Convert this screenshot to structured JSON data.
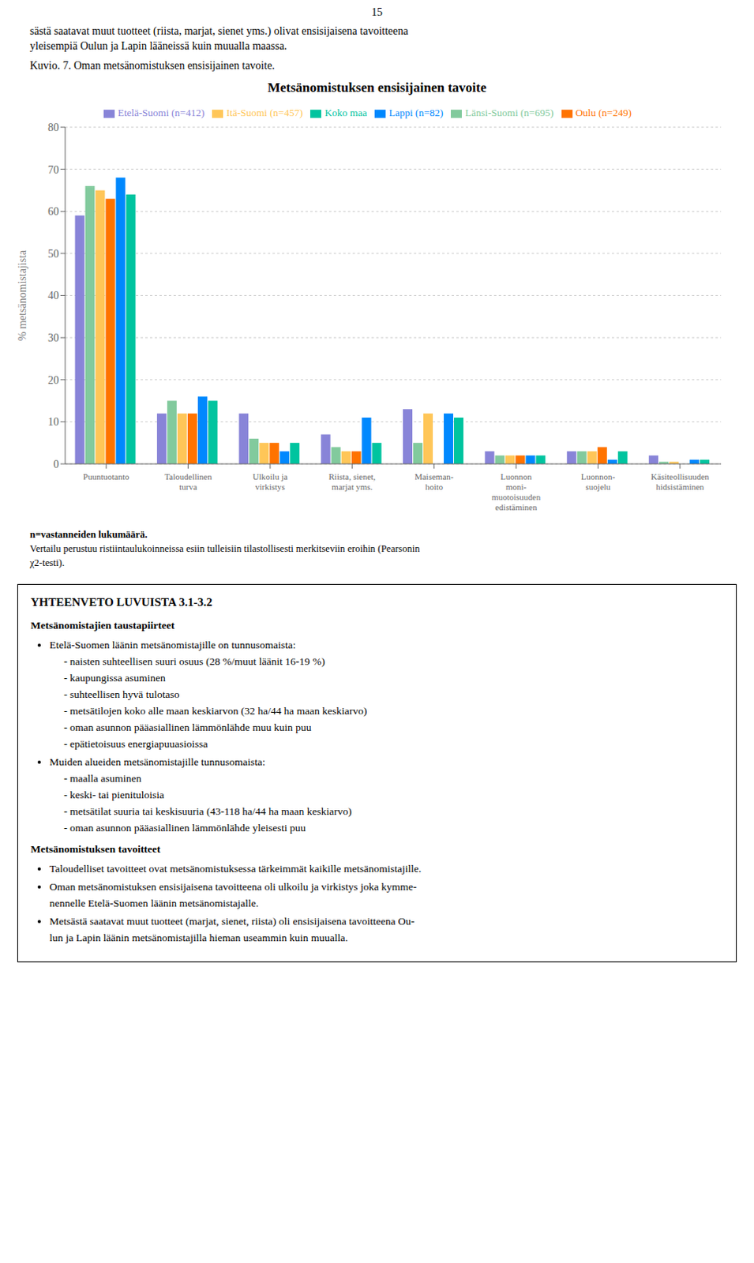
{
  "chart_data": {
    "type": "bar",
    "title": "Metsänomistuksen ensisijainen tavoite",
    "y_label": "% metsänomistajista",
    "categories": [
      "Puuntuotanto",
      "Taloudellinen\nturva",
      "Ulkoilu ja\nvirkistys",
      "Riista, sienet,\nmarjat yms.",
      "Maiseman-\nhoito",
      "Luonnon\nmoni-\nmuotoisuuden\nedistäminen",
      "Luonnon-\nsuojelu",
      "Käsiteollisuuden\nhidsistäminen"
    ],
    "series": [
      {
        "name": "Etelä-Suomi (n=412)",
        "color": "#8884d8",
        "values": [
          59,
          12,
          12,
          7,
          13,
          3,
          3,
          2
        ]
      },
      {
        "name": "Länsi-Suomi (n=695)",
        "color": "#82ca9d",
        "values": [
          66,
          15,
          6,
          4,
          5,
          2,
          3,
          0.5
        ]
      },
      {
        "name": "Itä-Suomi (n=457)",
        "color": "#ffc658",
        "values": [
          65,
          12,
          5,
          3,
          12,
          2,
          3,
          0.5
        ]
      },
      {
        "name": "Oulu (n=249)",
        "color": "#ff7300",
        "values": [
          63,
          12,
          5,
          3,
          0,
          2,
          4,
          0
        ]
      },
      {
        "name": "Lappi (n=82)",
        "color": "#0088fe",
        "values": [
          68,
          16,
          3,
          11,
          12,
          2,
          1,
          1
        ]
      },
      {
        "name": "Koko maa",
        "color": "#00c49f",
        "values": [
          64,
          15,
          5,
          5,
          11,
          2,
          3,
          1
        ]
      }
    ],
    "ylim": [
      0,
      80
    ],
    "yticks": [
      0,
      10,
      20,
      30,
      40,
      50,
      60,
      70,
      80
    ],
    "grid": true,
    "legend": "top"
  },
  "page": {
    "page_number": "15",
    "top_text": [
      "sästä saatavat muut tuotteet (riista, marjat, sienet yms.) olivat ensisijaisena tavoitteena",
      "yleisempiä Oulun ja Lapin lääneissä kuin muualla maassa."
    ],
    "caption": "Kuvio. 7. Oman metsänomistuksen ensisijainen tavoite.",
    "notes": [
      "n=vastanneiden lukumäärä.",
      "Vertailu perustuu ristiintaulukoinneissa esiin tulleisiin tilastollisesti merkitseviin eroihin (Pearsonin",
      "χ2-testi)."
    ],
    "summary": {
      "title": "YHTEENVETO LUVUISTA 3.1-3.2",
      "sections": [
        {
          "subtitle": "Metsänomistajien taustapiirteet",
          "bullets": [
            {
              "text": "Etelä-Suomen läänin metsänomistajille on tunnusomaista:",
              "items": [
                "naisten suhteellisen suuri osuus (28 %/muut läänit 16-19 %)",
                "kaupungissa asuminen",
                "suhteellisen hyvä tulotaso",
                "metsätilojen koko alle maan keskiarvon (32 ha/44 ha maan keskiarvo)",
                "oman asunnon pääasiallinen lämmönlähde muu kuin puu",
                "epätietoisuus energiapuuasioissa"
              ]
            },
            {
              "text": "Muiden alueiden metsänomistajille tunnusomaista:",
              "items": [
                "maalla asuminen",
                "keski- tai pienituloisia",
                "metsätilat suuria tai keskisuuria (43-118 ha/44 ha maan keskiarvo)",
                "oman asunnon pääasiallinen lämmönlähde yleisesti puu"
              ]
            }
          ]
        },
        {
          "subtitle": "Metsänomistuksen tavoitteet",
          "bullets": [
            {
              "text": "Taloudelliset tavoitteet ovat metsänomistuksessa tärkeimmät kaikille metsänomistajille."
            },
            {
              "text": "Oman metsänomistuksen ensisijaisena tavoitteena oli ulkoilu ja virkistys joka kymme-\nnennelle Etelä-Suomen läänin metsänomistajalle."
            },
            {
              "text": "Metsästä saatavat muut tuotteet (marjat, sienet, riista) oli ensisijaisena tavoitteena Ou-\nlun ja Lapin läänin metsänomistajilla hieman useammin kuin muualla."
            }
          ]
        }
      ]
    }
  }
}
